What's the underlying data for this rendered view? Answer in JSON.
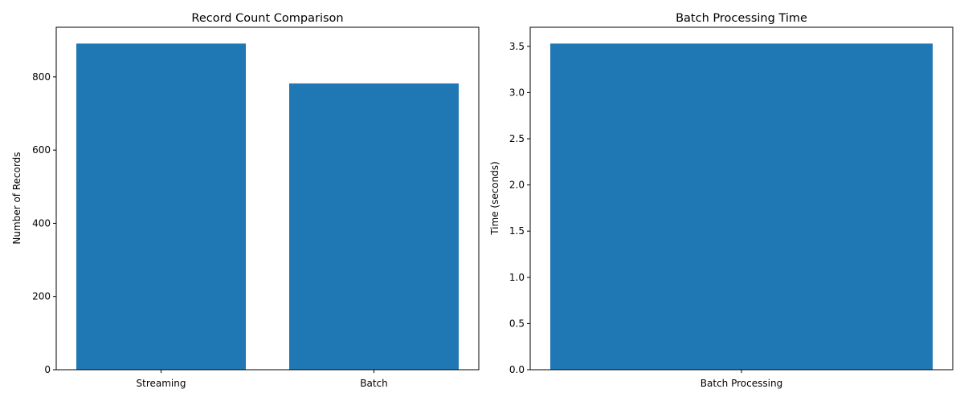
{
  "chart_data": [
    {
      "type": "bar",
      "title": "Record Count Comparison",
      "xlabel": "",
      "ylabel": "Number of Records",
      "categories": [
        "Streaming",
        "Batch"
      ],
      "values": [
        891,
        782
      ],
      "ylim": [
        0,
        935.55
      ],
      "yticks": [
        0,
        200,
        400,
        600,
        800
      ],
      "ytick_labels": [
        "0",
        "200",
        "400",
        "600",
        "800"
      ],
      "color": "#1f77b4",
      "grid": false
    },
    {
      "type": "bar",
      "title": "Batch Processing Time",
      "xlabel": "",
      "ylabel": "Time (seconds)",
      "categories": [
        "Batch Processing"
      ],
      "values": [
        3.53
      ],
      "ylim": [
        0,
        3.7065
      ],
      "yticks": [
        0,
        0.5,
        1.0,
        1.5,
        2.0,
        2.5,
        3.0,
        3.5
      ],
      "ytick_labels": [
        "0.0",
        "0.5",
        "1.0",
        "1.5",
        "2.0",
        "2.5",
        "3.0",
        "3.5"
      ],
      "color": "#1f77b4",
      "grid": false
    }
  ]
}
